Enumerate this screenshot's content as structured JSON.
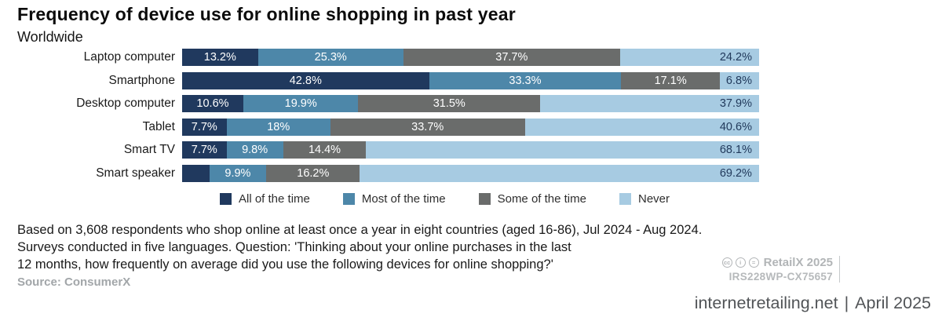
{
  "header": {
    "title": "Frequency of device use for online shopping in past year",
    "subtitle": "Worldwide"
  },
  "chart_data": {
    "type": "bar",
    "orientation": "horizontal-stacked",
    "title": "Frequency of device use for online shopping in past year",
    "subtitle": "Worldwide",
    "xlim": [
      0,
      100
    ],
    "grid": false,
    "legend_position": "bottom",
    "categories": [
      "Laptop computer",
      "Smartphone",
      "Desktop computer",
      "Tablet",
      "Smart TV",
      "Smart speaker"
    ],
    "series": [
      {
        "name": "All of the time",
        "color": "#20395e",
        "values": [
          13.2,
          42.8,
          10.6,
          7.7,
          7.7,
          4.7
        ],
        "labels": [
          "13.2%",
          "42.8%",
          "10.6%",
          "7.7%",
          "7.7%",
          ""
        ]
      },
      {
        "name": "Most of the time",
        "color": "#4d87a9",
        "values": [
          25.3,
          33.3,
          19.9,
          18,
          9.8,
          9.9
        ],
        "labels": [
          "25.3%",
          "33.3%",
          "19.9%",
          "18%",
          "9.8%",
          "9.9%"
        ]
      },
      {
        "name": "Some of the time",
        "color": "#6a6c6b",
        "values": [
          37.7,
          17.1,
          31.5,
          33.7,
          14.4,
          16.2
        ],
        "labels": [
          "37.7%",
          "17.1%",
          "31.5%",
          "33.7%",
          "14.4%",
          "16.2%"
        ]
      },
      {
        "name": "Never",
        "color": "#a7cbe2",
        "values": [
          24.2,
          6.8,
          37.9,
          40.6,
          68.1,
          69.2
        ],
        "labels": [
          "24.2%",
          "6.8%",
          "37.9%",
          "40.6%",
          "68.1%",
          "69.2%"
        ]
      }
    ]
  },
  "footnote": {
    "line1": "Based on 3,608 respondents who shop online at least once a year in eight countries (aged 16-86), Jul 2024 - Aug 2024.",
    "line2": "Surveys conducted in five languages. Question: 'Thinking about your online purchases in the last",
    "line3": "12 months, how frequently on average did you use the following devices for online shopping?'"
  },
  "source": "Source: ConsumerX",
  "meta": {
    "license_icons": [
      "cc",
      "by",
      "nd"
    ],
    "license_glyphs": [
      "cc",
      "i",
      "="
    ],
    "publisher": "RetailX 2025",
    "ref": "IRS228WP-CX75657"
  },
  "bottom_right": {
    "site": "internetretailing.net",
    "separator": "|",
    "date": "April 2025"
  }
}
